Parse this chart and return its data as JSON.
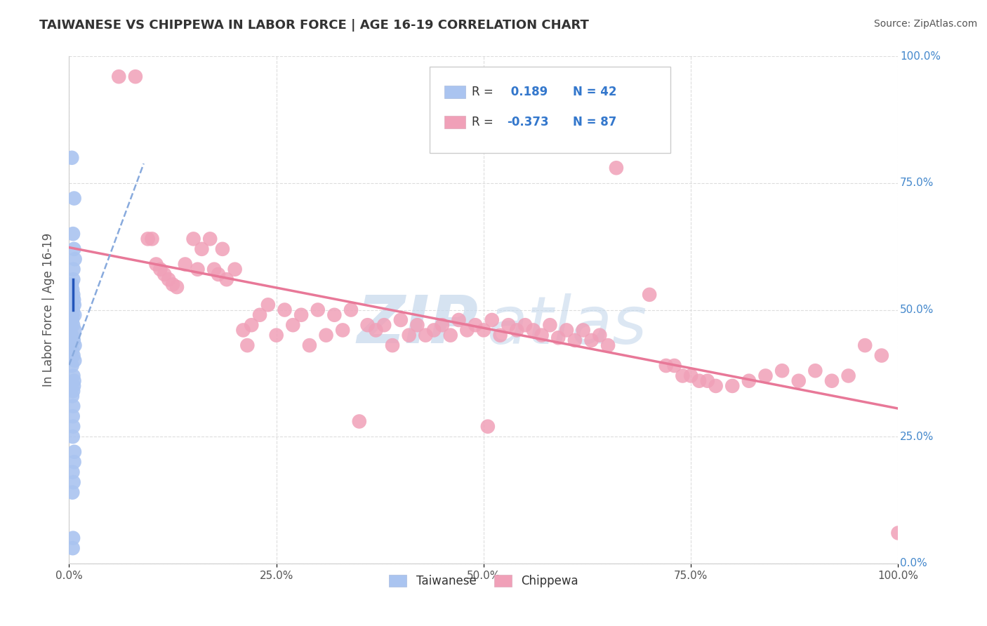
{
  "title": "TAIWANESE VS CHIPPEWA IN LABOR FORCE | AGE 16-19 CORRELATION CHART",
  "source": "Source: ZipAtlas.com",
  "ylabel": "In Labor Force | Age 16-19",
  "taiwanese_color": "#aac4f0",
  "chippewa_color": "#f0a0b8",
  "tw_line_color": "#88aadd",
  "ch_line_color": "#e87898",
  "tw_solid_color": "#2255bb",
  "taiwanese_R": 0.189,
  "taiwanese_N": 42,
  "chippewa_R": -0.373,
  "chippewa_N": 87,
  "watermark_zip": "ZIP",
  "watermark_atlas": "atlas",
  "watermark_zip_color": "#b0cce8",
  "watermark_atlas_color": "#b0cce8",
  "background_color": "#ffffff",
  "title_color": "#333333",
  "title_fontsize": 13,
  "right_tick_color": "#4488cc",
  "grid_color": "#dddddd",
  "tw_scatter_x": [
    0.005,
    0.005,
    0.005,
    0.005,
    0.005,
    0.005,
    0.005,
    0.005,
    0.005,
    0.005,
    0.005,
    0.005,
    0.005,
    0.005,
    0.005,
    0.005,
    0.005,
    0.005,
    0.005,
    0.005,
    0.005,
    0.005,
    0.005,
    0.005,
    0.005,
    0.005,
    0.005,
    0.005,
    0.005,
    0.005,
    0.005,
    0.005,
    0.005,
    0.005,
    0.005,
    0.005,
    0.005,
    0.005,
    0.005,
    0.005,
    0.005,
    0.005
  ],
  "tw_scatter_y": [
    0.8,
    0.72,
    0.65,
    0.62,
    0.6,
    0.58,
    0.56,
    0.55,
    0.54,
    0.53,
    0.52,
    0.51,
    0.5,
    0.5,
    0.49,
    0.49,
    0.48,
    0.47,
    0.46,
    0.45,
    0.44,
    0.43,
    0.42,
    0.41,
    0.4,
    0.39,
    0.37,
    0.36,
    0.35,
    0.34,
    0.33,
    0.31,
    0.29,
    0.27,
    0.25,
    0.22,
    0.2,
    0.18,
    0.16,
    0.14,
    0.05,
    0.03
  ],
  "ch_scatter_x": [
    0.06,
    0.08,
    0.095,
    0.1,
    0.105,
    0.11,
    0.115,
    0.12,
    0.125,
    0.13,
    0.14,
    0.15,
    0.155,
    0.16,
    0.17,
    0.175,
    0.18,
    0.185,
    0.19,
    0.2,
    0.21,
    0.215,
    0.22,
    0.23,
    0.24,
    0.25,
    0.26,
    0.27,
    0.28,
    0.29,
    0.3,
    0.31,
    0.32,
    0.33,
    0.34,
    0.35,
    0.36,
    0.37,
    0.38,
    0.39,
    0.4,
    0.41,
    0.42,
    0.43,
    0.44,
    0.45,
    0.46,
    0.47,
    0.48,
    0.49,
    0.5,
    0.505,
    0.51,
    0.52,
    0.53,
    0.54,
    0.55,
    0.56,
    0.57,
    0.58,
    0.59,
    0.6,
    0.61,
    0.62,
    0.63,
    0.64,
    0.65,
    0.66,
    0.7,
    0.72,
    0.73,
    0.74,
    0.75,
    0.76,
    0.77,
    0.78,
    0.8,
    0.82,
    0.84,
    0.86,
    0.88,
    0.9,
    0.92,
    0.94,
    0.96,
    0.98,
    1.0
  ],
  "ch_scatter_y": [
    0.96,
    0.96,
    0.64,
    0.64,
    0.59,
    0.58,
    0.57,
    0.56,
    0.55,
    0.545,
    0.59,
    0.64,
    0.58,
    0.62,
    0.64,
    0.58,
    0.57,
    0.62,
    0.56,
    0.58,
    0.46,
    0.43,
    0.47,
    0.49,
    0.51,
    0.45,
    0.5,
    0.47,
    0.49,
    0.43,
    0.5,
    0.45,
    0.49,
    0.46,
    0.5,
    0.28,
    0.47,
    0.46,
    0.47,
    0.43,
    0.48,
    0.45,
    0.47,
    0.45,
    0.46,
    0.47,
    0.45,
    0.48,
    0.46,
    0.47,
    0.46,
    0.27,
    0.48,
    0.45,
    0.47,
    0.46,
    0.47,
    0.46,
    0.45,
    0.47,
    0.445,
    0.46,
    0.44,
    0.46,
    0.44,
    0.45,
    0.43,
    0.78,
    0.53,
    0.39,
    0.39,
    0.37,
    0.37,
    0.36,
    0.36,
    0.35,
    0.35,
    0.36,
    0.37,
    0.38,
    0.36,
    0.38,
    0.36,
    0.37,
    0.43,
    0.41,
    0.06
  ]
}
